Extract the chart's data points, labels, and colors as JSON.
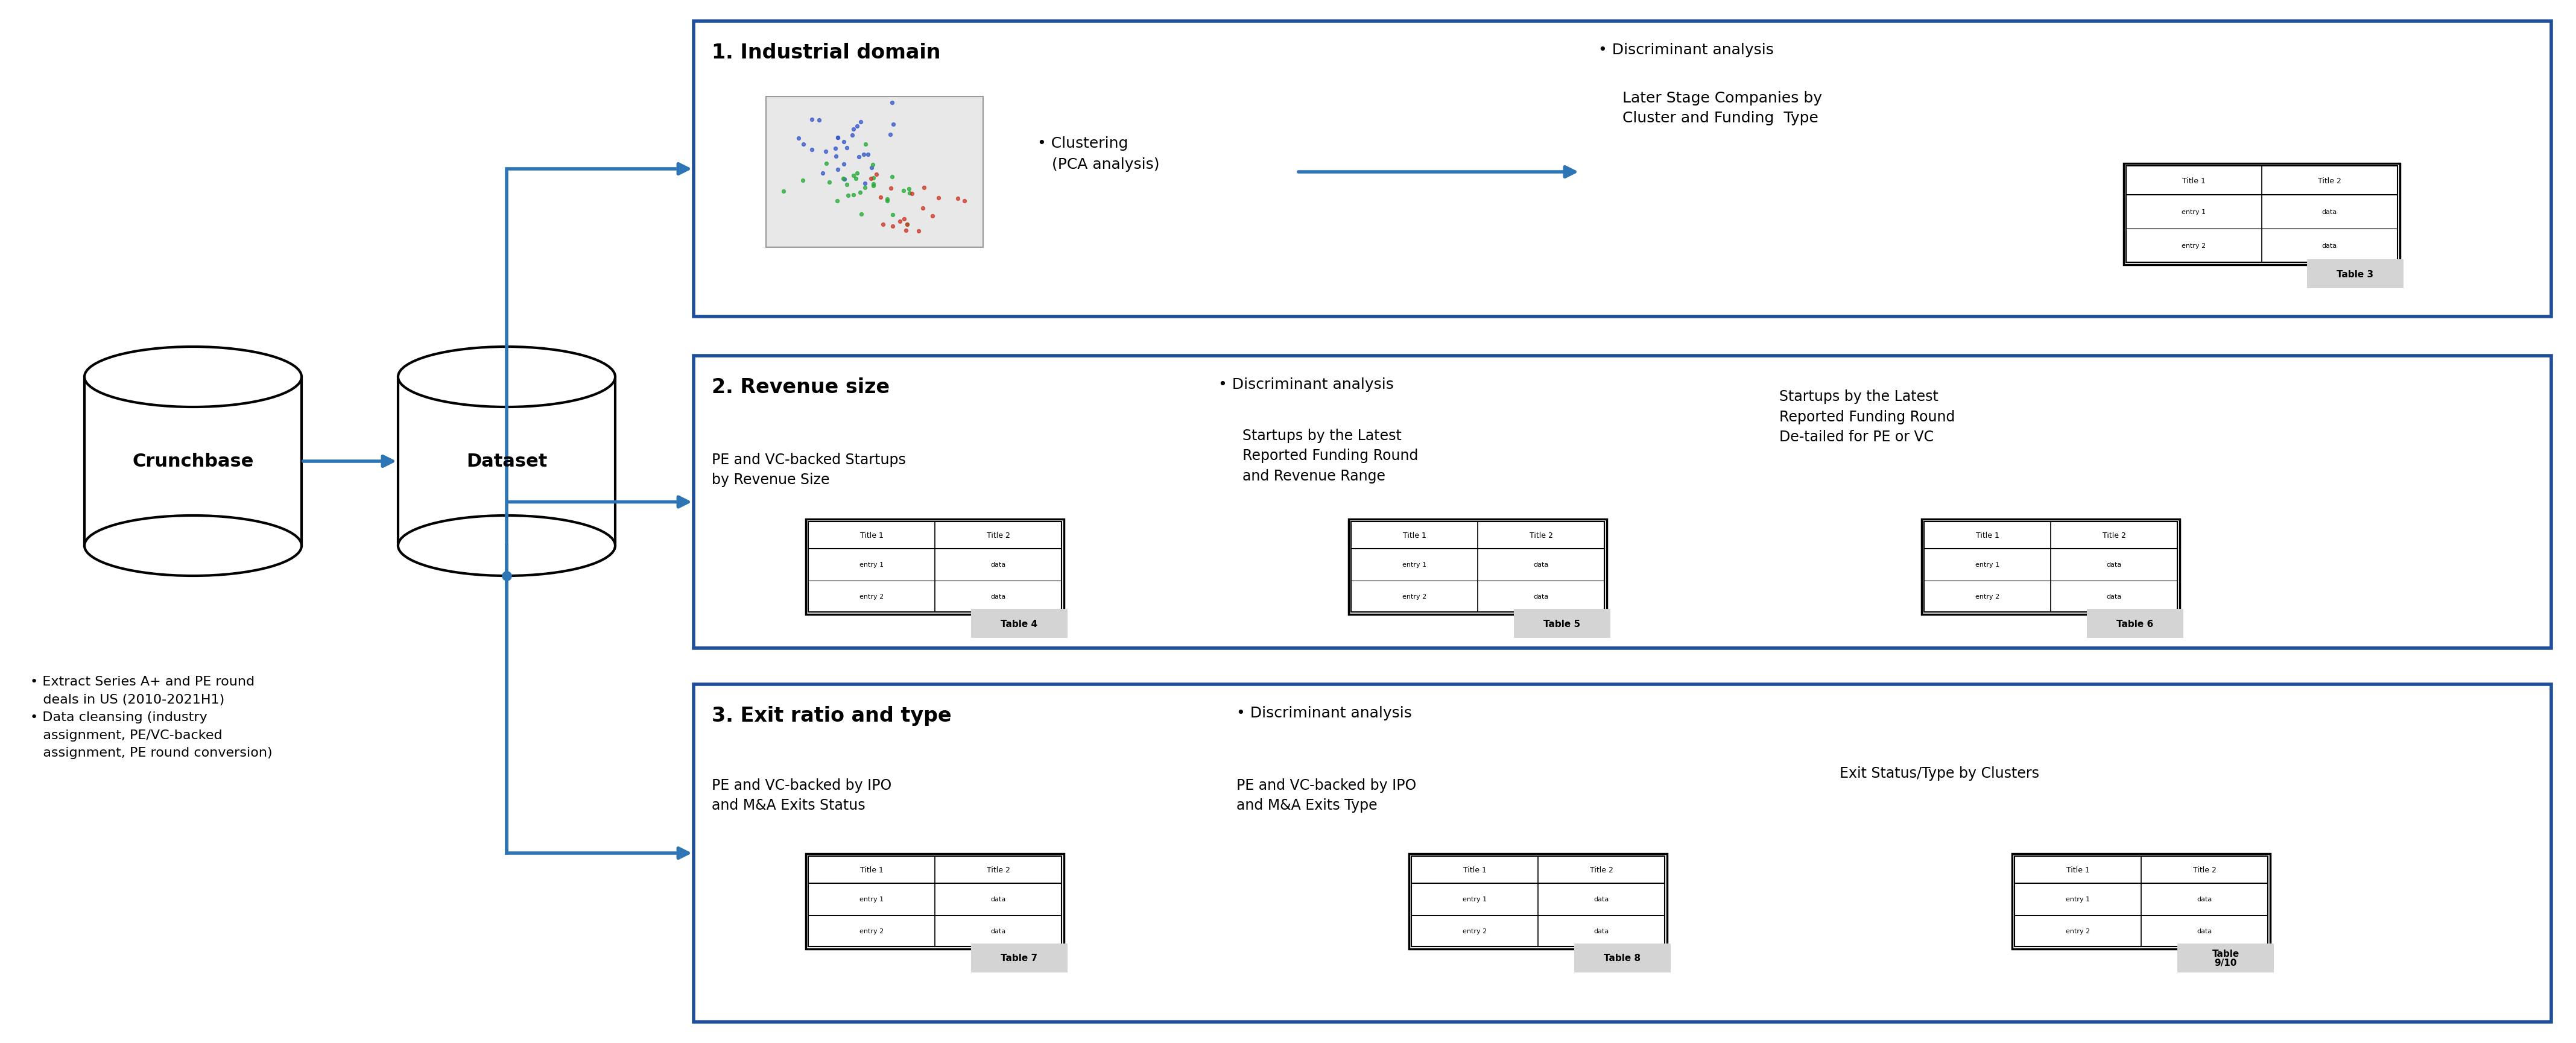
{
  "bg_color": "#ffffff",
  "blue_border": "#1f4e9b",
  "arrow_color": "#2e75b6",
  "crunchbase_label": "Crunchbase",
  "dataset_label": "Dataset",
  "bullet_notes": "• Extract Series A+ and PE round\n   deals in US (2010-2021H1)\n• Data cleansing (industry\n   assignment, PE/VC-backed\n   assignment, PE round conversion)",
  "section1_title": "1. Industrial domain",
  "section1_cluster": "• Clustering\n   (PCA analysis)",
  "section1_disc": "• Discriminant analysis",
  "section1_disc_sub": "Later Stage Companies by\nCluster and Funding  Type",
  "section1_table": "Table 3",
  "section2_title": "2. Revenue size",
  "section2_left": "PE and VC-backed Startups\nby Revenue Size",
  "section2_disc": "• Discriminant analysis",
  "section2_disc_sub": "Startups by the Latest\nReported Funding Round\nand Revenue Range",
  "section2_right": "Startups by the Latest\nReported Funding Round\nDe-tailed for PE or VC",
  "section2_table4": "Table 4",
  "section2_table5": "Table 5",
  "section2_table6": "Table 6",
  "section3_title": "3. Exit ratio and type",
  "section3_disc": "• Discriminant analysis",
  "section3_left": "PE and VC-backed by IPO\nand M&A Exits Status",
  "section3_mid": "PE and VC-backed by IPO\nand M&A Exits Type",
  "section3_right": "Exit Status/Type by Clusters",
  "section3_table7": "Table 7",
  "section3_table8": "Table 8",
  "section3_table9": "Table\n9/10"
}
